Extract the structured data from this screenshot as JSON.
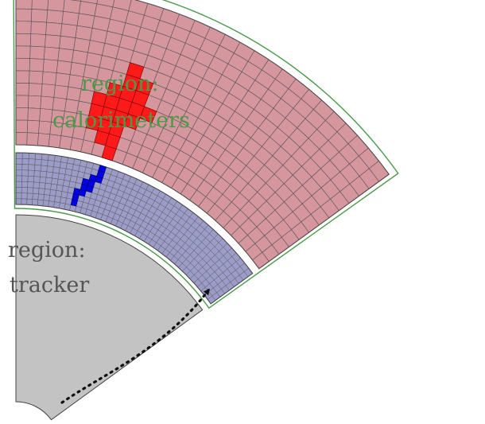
{
  "labels": {
    "calorimeters_line1": "region:",
    "calorimeters_line2": "calorimeters",
    "tracker_line1": "region:",
    "tracker_line2": "tracker"
  },
  "colors": {
    "calorimeter_label": "#4a9a4a",
    "tracker_label": "#555555",
    "tracker_fill": "#c3c3c3",
    "ecal_fill": "#9c9cc8",
    "ecal_hit": "#0000e6",
    "hcal_fill": "#d6969e",
    "hcal_hit": "#ff1a1a",
    "outline_green": "#4a9a4a",
    "grid_line": "#555555",
    "dotted_track": "#111111"
  },
  "icons": {
    "track_arrow": "dotted-arrow"
  }
}
